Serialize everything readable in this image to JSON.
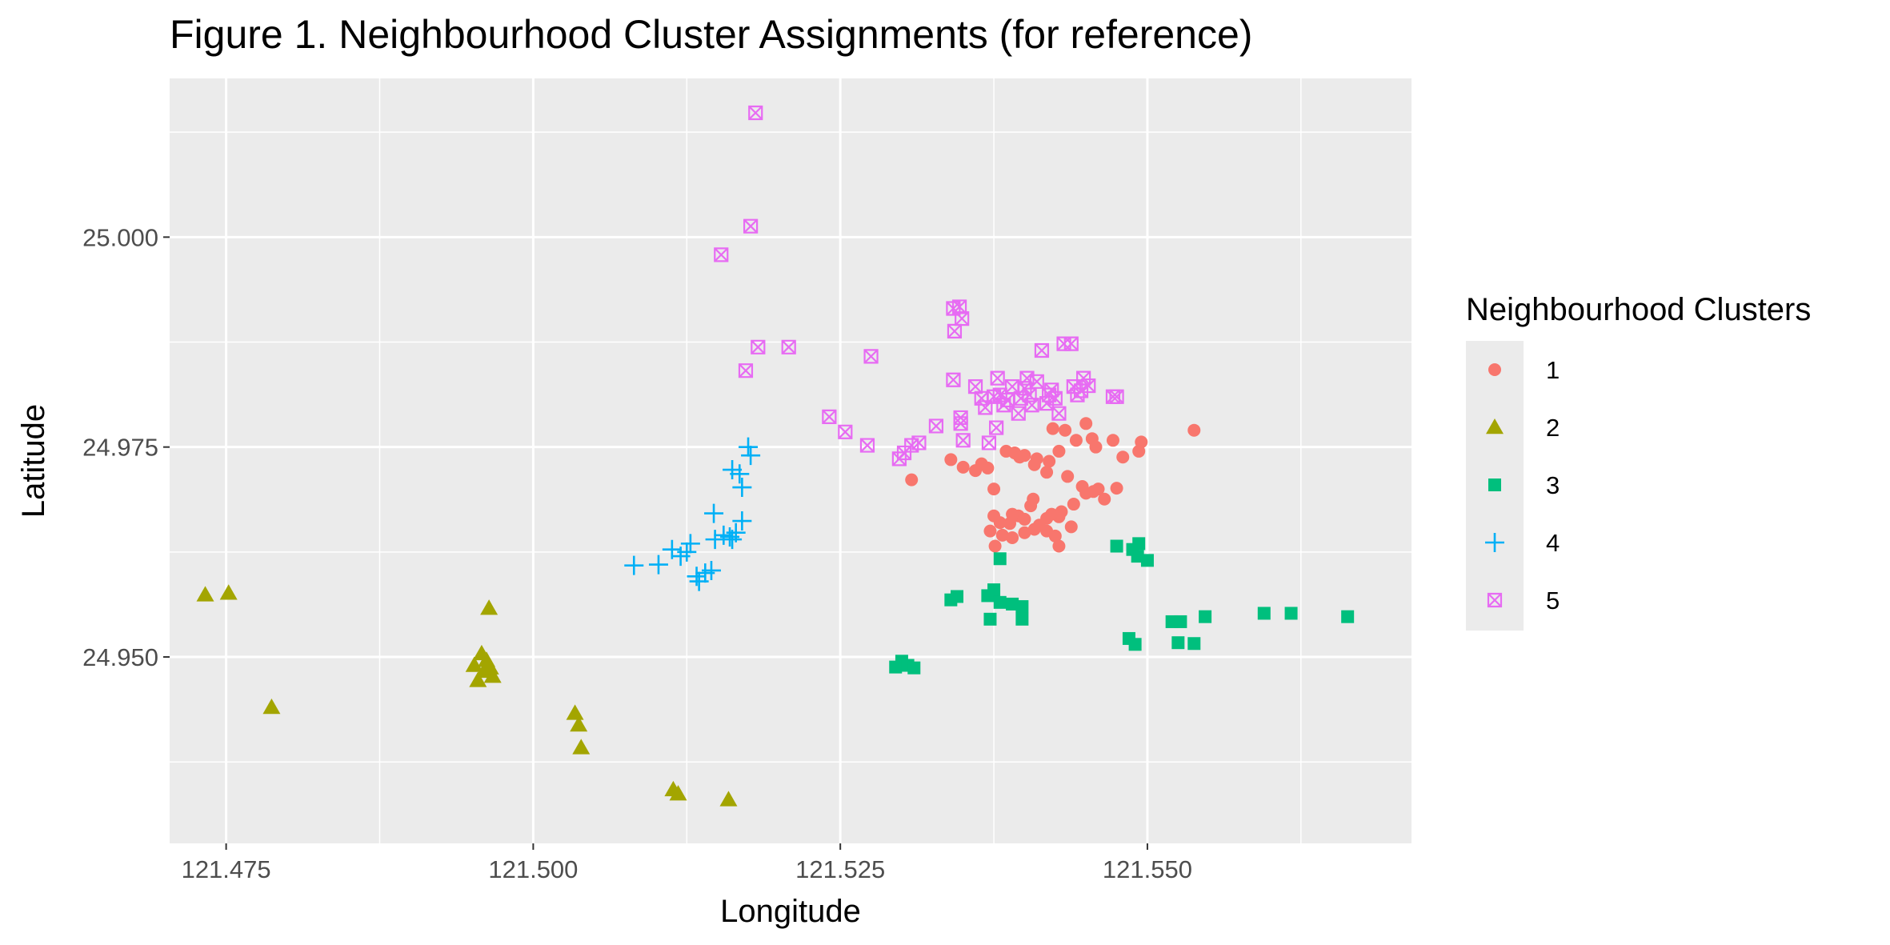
{
  "chart_data": {
    "type": "scatter",
    "title": "Figure 1. Neighbourhood Cluster Assignments (for reference)",
    "xlabel": "Longitude",
    "ylabel": "Latitude",
    "xlim": [
      121.4704,
      121.5715
    ],
    "ylim": [
      24.9278,
      25.0189
    ],
    "x_ticks": [
      121.475,
      121.5,
      121.525,
      121.55
    ],
    "x_tick_labels": [
      "121.475",
      "121.500",
      "121.525",
      "121.550"
    ],
    "y_ticks": [
      24.95,
      24.975,
      25.0
    ],
    "y_tick_labels": [
      "24.950",
      "24.975",
      "25.000"
    ],
    "grid": true,
    "legend": {
      "title": "Neighbourhood Clusters",
      "position": "right"
    },
    "series": [
      {
        "name": "1",
        "color": "#F8766D",
        "shape": "circle",
        "points": [
          [
            121.5308,
            24.9711
          ],
          [
            121.534,
            24.9735
          ],
          [
            121.535,
            24.9726
          ],
          [
            121.5365,
            24.973
          ],
          [
            121.536,
            24.9722
          ],
          [
            121.537,
            24.9725
          ],
          [
            121.5375,
            24.97
          ],
          [
            121.5385,
            24.9745
          ],
          [
            121.5392,
            24.9743
          ],
          [
            121.54,
            24.974
          ],
          [
            121.541,
            24.9736
          ],
          [
            121.542,
            24.9733
          ],
          [
            121.5428,
            24.9745
          ],
          [
            121.5423,
            24.9772
          ],
          [
            121.5433,
            24.977
          ],
          [
            121.5442,
            24.9758
          ],
          [
            121.545,
            24.9778
          ],
          [
            121.5455,
            24.976
          ],
          [
            121.5458,
            24.975
          ],
          [
            121.5472,
            24.9758
          ],
          [
            121.548,
            24.9738
          ],
          [
            121.5495,
            24.9756
          ],
          [
            121.5493,
            24.9745
          ],
          [
            121.5538,
            24.977
          ],
          [
            121.5435,
            24.9715
          ],
          [
            121.5447,
            24.9703
          ],
          [
            121.545,
            24.9695
          ],
          [
            121.5456,
            24.9697
          ],
          [
            121.546,
            24.97
          ],
          [
            121.5465,
            24.9688
          ],
          [
            121.5475,
            24.9701
          ],
          [
            121.544,
            24.9682
          ],
          [
            121.543,
            24.9673
          ],
          [
            121.5428,
            24.9667
          ],
          [
            121.5422,
            24.967
          ],
          [
            121.5418,
            24.9665
          ],
          [
            121.5412,
            24.9657
          ],
          [
            121.5407,
            24.9688
          ],
          [
            121.5405,
            24.968
          ],
          [
            121.54,
            24.9664
          ],
          [
            121.5395,
            24.9668
          ],
          [
            121.539,
            24.967
          ],
          [
            121.5388,
            24.9659
          ],
          [
            121.538,
            24.966
          ],
          [
            121.5375,
            24.9668
          ],
          [
            121.5372,
            24.965
          ],
          [
            121.5376,
            24.9632
          ],
          [
            121.5382,
            24.9645
          ],
          [
            121.539,
            24.9642
          ],
          [
            121.54,
            24.9648
          ],
          [
            121.5408,
            24.9652
          ],
          [
            121.5418,
            24.965
          ],
          [
            121.5425,
            24.9644
          ],
          [
            121.5428,
            24.9632
          ],
          [
            121.5438,
            24.9655
          ],
          [
            121.5418,
            24.972
          ],
          [
            121.5408,
            24.9729
          ],
          [
            121.5396,
            24.9738
          ]
        ]
      },
      {
        "name": "2",
        "color": "#A3A500",
        "shape": "triangle",
        "points": [
          [
            121.4733,
            24.9574
          ],
          [
            121.4752,
            24.9576
          ],
          [
            121.4787,
            24.944
          ],
          [
            121.4964,
            24.9558
          ],
          [
            121.4958,
            24.9504
          ],
          [
            121.4962,
            24.9496
          ],
          [
            121.4952,
            24.949
          ],
          [
            121.496,
            24.9483
          ],
          [
            121.4967,
            24.9477
          ],
          [
            121.4955,
            24.9472
          ],
          [
            121.4965,
            24.9487
          ],
          [
            121.5034,
            24.9433
          ],
          [
            121.5037,
            24.9419
          ],
          [
            121.5039,
            24.9392
          ],
          [
            121.5114,
            24.9342
          ],
          [
            121.5118,
            24.9337
          ],
          [
            121.5159,
            24.933
          ]
        ]
      },
      {
        "name": "3",
        "color": "#00BF7D",
        "shape": "square",
        "points": [
          [
            121.5295,
            24.9488
          ],
          [
            121.53,
            24.9495
          ],
          [
            121.5305,
            24.949
          ],
          [
            121.531,
            24.9487
          ],
          [
            121.5345,
            24.9572
          ],
          [
            121.534,
            24.9568
          ],
          [
            121.537,
            24.9573
          ],
          [
            121.5375,
            24.958
          ],
          [
            121.538,
            24.9565
          ],
          [
            121.539,
            24.9563
          ],
          [
            121.5398,
            24.956
          ],
          [
            121.5372,
            24.9545
          ],
          [
            121.5398,
            24.9545
          ],
          [
            121.538,
            24.9617
          ],
          [
            121.5475,
            24.9632
          ],
          [
            121.5488,
            24.9628
          ],
          [
            121.5492,
            24.962
          ],
          [
            121.5493,
            24.9635
          ],
          [
            121.55,
            24.9615
          ],
          [
            121.5485,
            24.9522
          ],
          [
            121.549,
            24.9515
          ],
          [
            121.552,
            24.9542
          ],
          [
            121.5527,
            24.9542
          ],
          [
            121.5525,
            24.9517
          ],
          [
            121.5538,
            24.9516
          ],
          [
            121.5547,
            24.9548
          ],
          [
            121.5595,
            24.9552
          ],
          [
            121.5617,
            24.9552
          ],
          [
            121.5663,
            24.9548
          ]
        ]
      },
      {
        "name": "4",
        "color": "#00B0F6",
        "shape": "plus",
        "points": [
          [
            121.5082,
            24.9609
          ],
          [
            121.5102,
            24.961
          ],
          [
            121.5113,
            24.9628
          ],
          [
            121.512,
            24.962
          ],
          [
            121.5125,
            24.9625
          ],
          [
            121.5128,
            24.9635
          ],
          [
            121.5133,
            24.9596
          ],
          [
            121.5135,
            24.959
          ],
          [
            121.514,
            24.96
          ],
          [
            121.5145,
            24.9603
          ],
          [
            121.5148,
            24.964
          ],
          [
            121.5155,
            24.9645
          ],
          [
            121.516,
            24.9643
          ],
          [
            121.5162,
            24.964
          ],
          [
            121.5165,
            24.9648
          ],
          [
            121.517,
            24.9662
          ],
          [
            121.5147,
            24.9671
          ],
          [
            121.5162,
            24.9723
          ],
          [
            121.5168,
            24.9718
          ],
          [
            121.517,
            24.9702
          ],
          [
            121.5175,
            24.975
          ],
          [
            121.5177,
            24.974
          ]
        ]
      },
      {
        "name": "5",
        "color": "#E76BF3",
        "shape": "boxx",
        "points": [
          [
            121.5181,
            25.0148
          ],
          [
            121.5177,
            25.0013
          ],
          [
            121.5153,
            24.9979
          ],
          [
            121.5183,
            24.9869
          ],
          [
            121.5173,
            24.9841
          ],
          [
            121.5208,
            24.9869
          ],
          [
            121.5275,
            24.9858
          ],
          [
            121.5241,
            24.9786
          ],
          [
            121.5254,
            24.9768
          ],
          [
            121.5272,
            24.9752
          ],
          [
            121.5298,
            24.9736
          ],
          [
            121.5302,
            24.9743
          ],
          [
            121.5308,
            24.9752
          ],
          [
            121.5314,
            24.9755
          ],
          [
            121.5328,
            24.9775
          ],
          [
            121.5342,
            24.9915
          ],
          [
            121.5347,
            24.9917
          ],
          [
            121.5349,
            24.9903
          ],
          [
            121.5343,
            24.9888
          ],
          [
            121.5342,
            24.983
          ],
          [
            121.5348,
            24.9785
          ],
          [
            121.5348,
            24.9778
          ],
          [
            121.535,
            24.9758
          ],
          [
            121.536,
            24.9822
          ],
          [
            121.5365,
            24.9808
          ],
          [
            121.5368,
            24.9797
          ],
          [
            121.5371,
            24.9755
          ],
          [
            121.5375,
            24.981
          ],
          [
            121.5378,
            24.9832
          ],
          [
            121.538,
            24.9812
          ],
          [
            121.5383,
            24.98
          ],
          [
            121.5386,
            24.9806
          ],
          [
            121.5377,
            24.9773
          ],
          [
            121.539,
            24.9822
          ],
          [
            121.5395,
            24.979
          ],
          [
            121.5397,
            24.9808
          ],
          [
            121.54,
            24.982
          ],
          [
            121.5402,
            24.9832
          ],
          [
            121.5404,
            24.9812
          ],
          [
            121.5406,
            24.98
          ],
          [
            121.541,
            24.9828
          ],
          [
            121.5414,
            24.9865
          ],
          [
            121.5418,
            24.9802
          ],
          [
            121.542,
            24.9812
          ],
          [
            121.5422,
            24.9818
          ],
          [
            121.5425,
            24.9808
          ],
          [
            121.5428,
            24.979
          ],
          [
            121.5432,
            24.9873
          ],
          [
            121.5438,
            24.9873
          ],
          [
            121.544,
            24.9822
          ],
          [
            121.5443,
            24.9812
          ],
          [
            121.5446,
            24.9817
          ],
          [
            121.5448,
            24.9832
          ],
          [
            121.5452,
            24.9823
          ],
          [
            121.5472,
            24.981
          ],
          [
            121.5475,
            24.981
          ]
        ]
      }
    ]
  }
}
